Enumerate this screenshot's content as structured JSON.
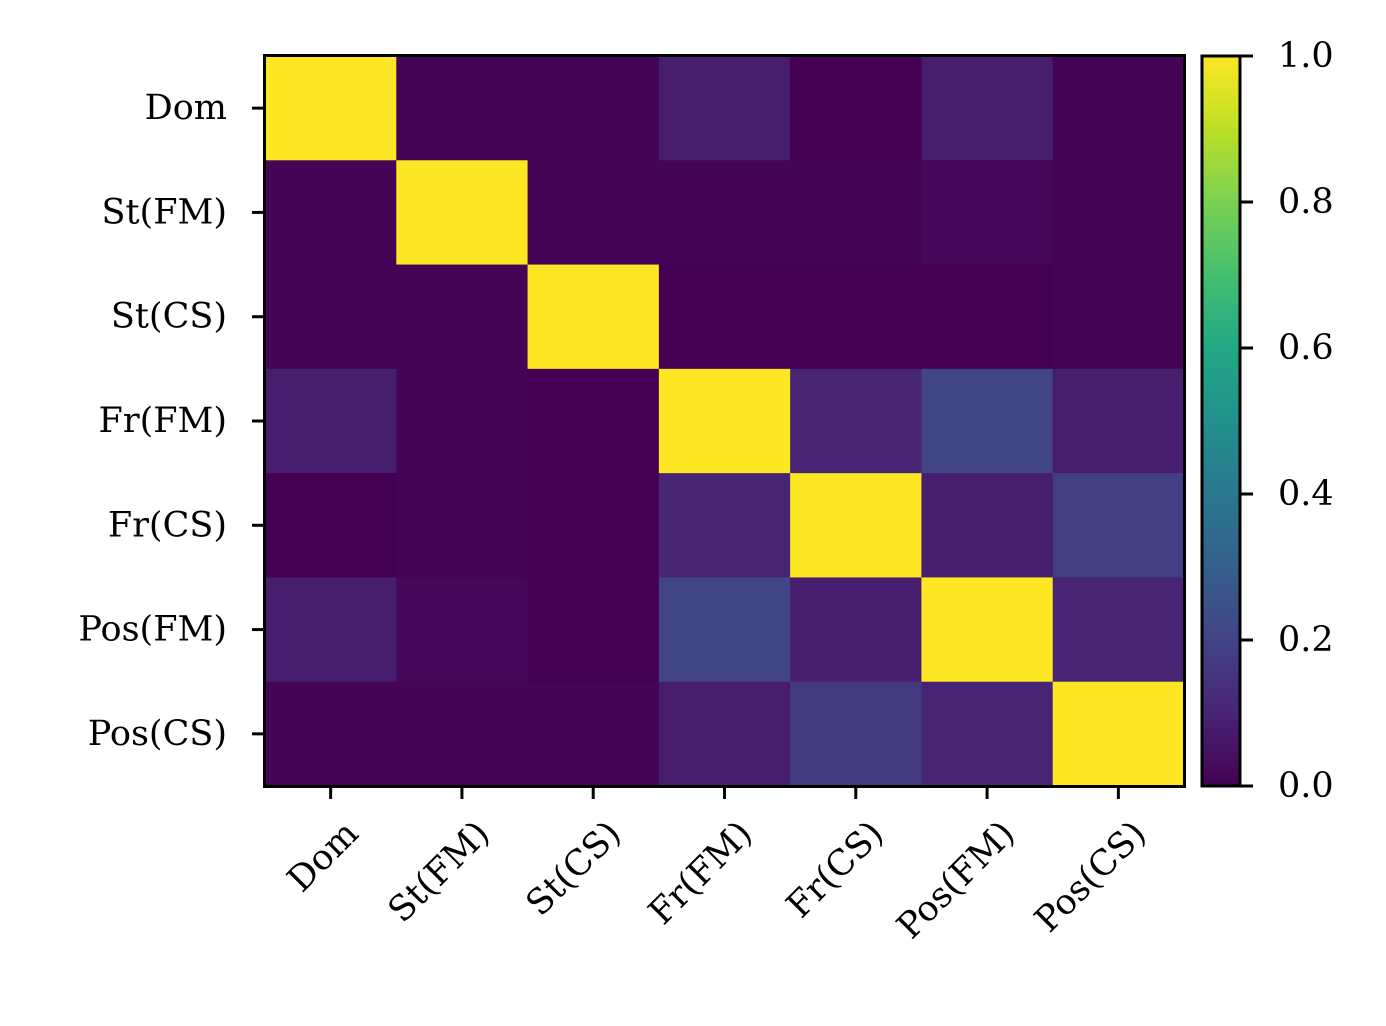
{
  "chart_data": {
    "type": "heatmap",
    "rows": [
      "Dom",
      "St(FM)",
      "St(CS)",
      "Fr(FM)",
      "Fr(CS)",
      "Pos(FM)",
      "Pos(CS)"
    ],
    "columns": [
      "Dom",
      "St(FM)",
      "St(CS)",
      "Fr(FM)",
      "Fr(CS)",
      "Pos(FM)",
      "Pos(CS)"
    ],
    "values": [
      [
        1.0,
        0.01,
        0.01,
        0.08,
        0.0,
        0.08,
        0.01
      ],
      [
        0.01,
        1.0,
        0.01,
        0.01,
        0.01,
        0.02,
        0.01
      ],
      [
        0.01,
        0.01,
        1.0,
        0.0,
        0.0,
        0.0,
        0.01
      ],
      [
        0.08,
        0.01,
        0.0,
        1.0,
        0.1,
        0.2,
        0.08
      ],
      [
        0.0,
        0.01,
        0.0,
        0.1,
        1.0,
        0.08,
        0.18
      ],
      [
        0.08,
        0.02,
        0.0,
        0.2,
        0.08,
        1.0,
        0.1
      ],
      [
        0.01,
        0.01,
        0.01,
        0.08,
        0.17,
        0.1,
        1.0
      ]
    ],
    "colorscale": "viridis",
    "vmin": 0.0,
    "vmax": 1.0,
    "colorbar_ticks": [
      "0.0",
      "0.2",
      "0.4",
      "0.6",
      "0.8",
      "1.0"
    ],
    "xlabel": "",
    "ylabel": ""
  }
}
